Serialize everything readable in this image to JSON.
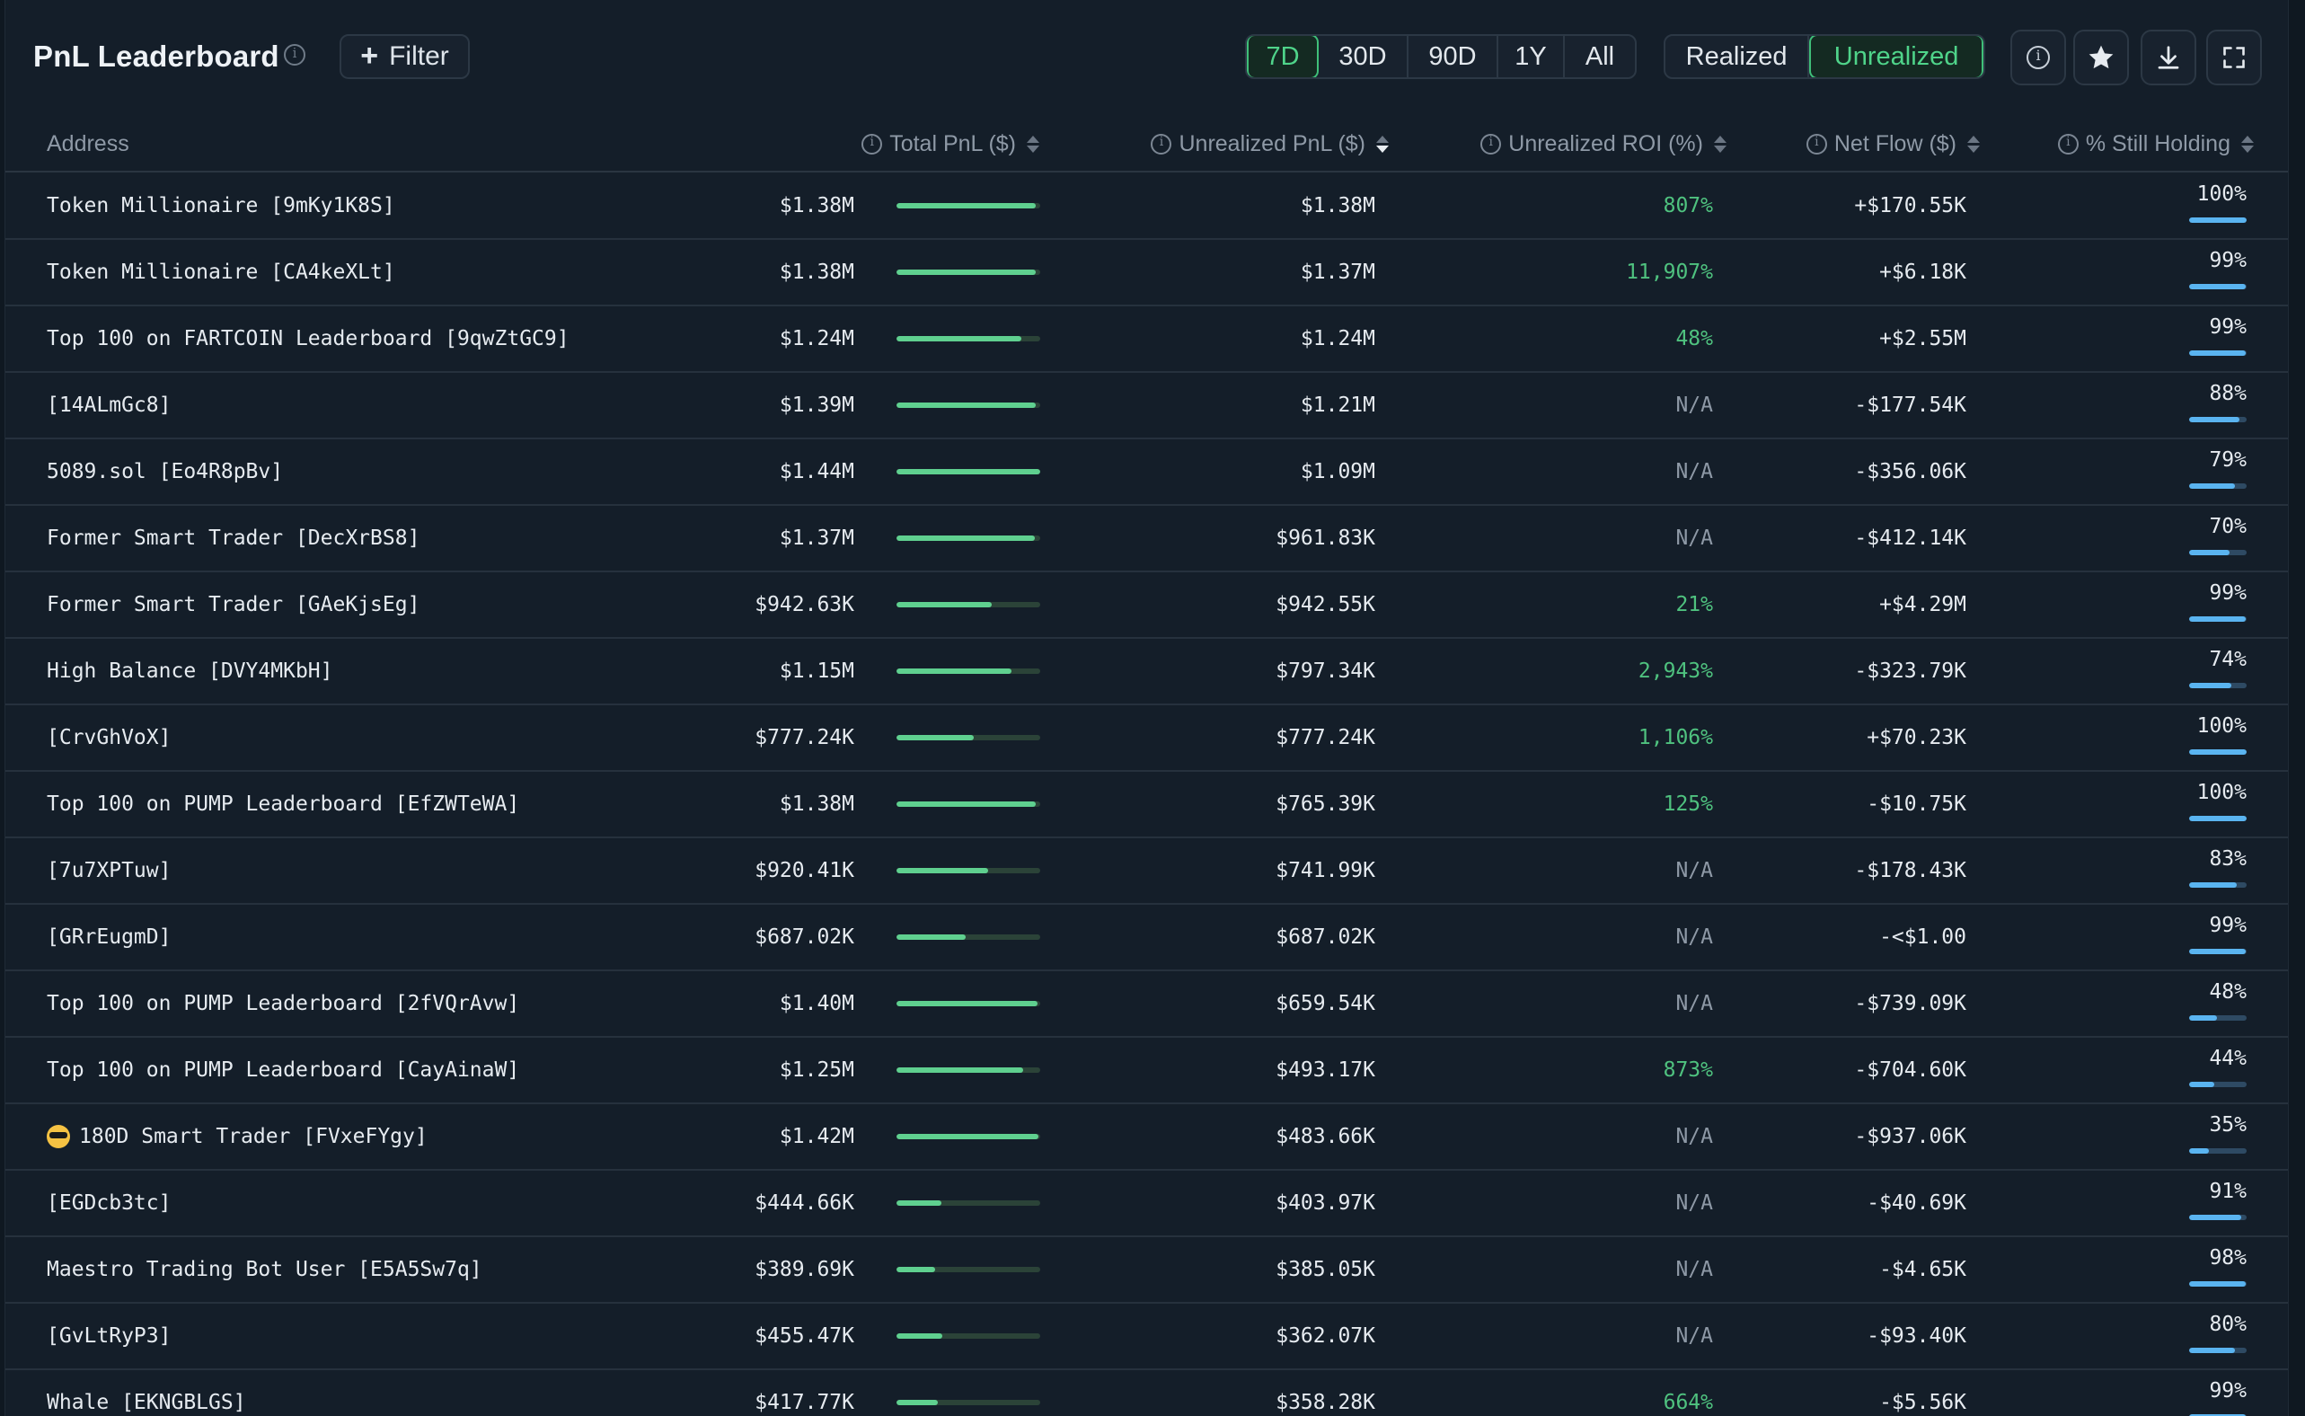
{
  "header": {
    "title": "PnL Leaderboard",
    "filter_label": "Filter",
    "periods": [
      "7D",
      "30D",
      "90D",
      "1Y",
      "All"
    ],
    "period_active": "7D",
    "modes": [
      "Realized",
      "Unrealized"
    ],
    "mode_active": "Unrealized",
    "icons": [
      "info-icon",
      "star-icon",
      "download-icon",
      "fullscreen-icon"
    ]
  },
  "columns": {
    "address": "Address",
    "total_pnl": "Total PnL ($)",
    "unrealized_pnl": "Unrealized PnL ($)",
    "unrealized_roi": "Unrealized ROI (%)",
    "net_flow": "Net Flow ($)",
    "still_holding": "% Still Holding"
  },
  "sort": {
    "column": "unrealized_pnl",
    "direction": "desc"
  },
  "colors": {
    "accent": "#4fd48a",
    "positive": "#4fc27f",
    "holding_bar": "#5ab4f0"
  },
  "rows": [
    {
      "address": "Token Millionaire [9mKy1K8S]",
      "total_pnl": "$1.38M",
      "bar": 0.97,
      "unrealized_pnl": "$1.38M",
      "roi": "807%",
      "net_flow": "+$170.55K",
      "holding": "100%",
      "holding_frac": 1.0
    },
    {
      "address": "Token Millionaire [CA4keXLt]",
      "total_pnl": "$1.38M",
      "bar": 0.97,
      "unrealized_pnl": "$1.37M",
      "roi": "11,907%",
      "net_flow": "+$6.18K",
      "holding": "99%",
      "holding_frac": 0.99
    },
    {
      "address": "Top 100 on FARTCOIN Leaderboard [9qwZtGC9]",
      "total_pnl": "$1.24M",
      "bar": 0.87,
      "unrealized_pnl": "$1.24M",
      "roi": "48%",
      "net_flow": "+$2.55M",
      "holding": "99%",
      "holding_frac": 0.99
    },
    {
      "address": "[14ALmGc8]",
      "total_pnl": "$1.39M",
      "bar": 0.97,
      "unrealized_pnl": "$1.21M",
      "roi": "N/A",
      "net_flow": "-$177.54K",
      "holding": "88%",
      "holding_frac": 0.88
    },
    {
      "address": "5089.sol [Eo4R8pBv]",
      "total_pnl": "$1.44M",
      "bar": 1.0,
      "unrealized_pnl": "$1.09M",
      "roi": "N/A",
      "net_flow": "-$356.06K",
      "holding": "79%",
      "holding_frac": 0.79
    },
    {
      "address": "Former Smart Trader [DecXrBS8]",
      "total_pnl": "$1.37M",
      "bar": 0.96,
      "unrealized_pnl": "$961.83K",
      "roi": "N/A",
      "net_flow": "-$412.14K",
      "holding": "70%",
      "holding_frac": 0.7
    },
    {
      "address": "Former Smart Trader [GAeKjsEg]",
      "total_pnl": "$942.63K",
      "bar": 0.66,
      "unrealized_pnl": "$942.55K",
      "roi": "21%",
      "net_flow": "+$4.29M",
      "holding": "99%",
      "holding_frac": 0.99
    },
    {
      "address": "High Balance [DVY4MKbH]",
      "total_pnl": "$1.15M",
      "bar": 0.8,
      "unrealized_pnl": "$797.34K",
      "roi": "2,943%",
      "net_flow": "-$323.79K",
      "holding": "74%",
      "holding_frac": 0.74
    },
    {
      "address": "[CrvGhVoX]",
      "total_pnl": "$777.24K",
      "bar": 0.54,
      "unrealized_pnl": "$777.24K",
      "roi": "1,106%",
      "net_flow": "+$70.23K",
      "holding": "100%",
      "holding_frac": 1.0
    },
    {
      "address": "Top 100 on PUMP Leaderboard [EfZWTeWA]",
      "total_pnl": "$1.38M",
      "bar": 0.97,
      "unrealized_pnl": "$765.39K",
      "roi": "125%",
      "net_flow": "-$10.75K",
      "holding": "100%",
      "holding_frac": 1.0
    },
    {
      "address": "[7u7XPTuw]",
      "total_pnl": "$920.41K",
      "bar": 0.64,
      "unrealized_pnl": "$741.99K",
      "roi": "N/A",
      "net_flow": "-$178.43K",
      "holding": "83%",
      "holding_frac": 0.83
    },
    {
      "address": "[GRrEugmD]",
      "total_pnl": "$687.02K",
      "bar": 0.48,
      "unrealized_pnl": "$687.02K",
      "roi": "N/A",
      "net_flow": "-<$1.00",
      "holding": "99%",
      "holding_frac": 0.99
    },
    {
      "address": "Top 100 on PUMP Leaderboard [2fVQrAvw]",
      "total_pnl": "$1.40M",
      "bar": 0.98,
      "unrealized_pnl": "$659.54K",
      "roi": "N/A",
      "net_flow": "-$739.09K",
      "holding": "48%",
      "holding_frac": 0.48
    },
    {
      "address": "Top 100 on PUMP Leaderboard [CayAinaW]",
      "total_pnl": "$1.25M",
      "bar": 0.88,
      "unrealized_pnl": "$493.17K",
      "roi": "873%",
      "net_flow": "-$704.60K",
      "holding": "44%",
      "holding_frac": 0.44
    },
    {
      "address": "180D Smart Trader [FVxeFYgy]",
      "total_pnl": "$1.42M",
      "bar": 0.99,
      "unrealized_pnl": "$483.66K",
      "roi": "N/A",
      "net_flow": "-$937.06K",
      "holding": "35%",
      "holding_frac": 0.35,
      "icon": "sunglasses-emoji-icon"
    },
    {
      "address": "[EGDcb3tc]",
      "total_pnl": "$444.66K",
      "bar": 0.31,
      "unrealized_pnl": "$403.97K",
      "roi": "N/A",
      "net_flow": "-$40.69K",
      "holding": "91%",
      "holding_frac": 0.91
    },
    {
      "address": "Maestro Trading Bot User [E5A5Sw7q]",
      "total_pnl": "$389.69K",
      "bar": 0.27,
      "unrealized_pnl": "$385.05K",
      "roi": "N/A",
      "net_flow": "-$4.65K",
      "holding": "98%",
      "holding_frac": 0.98
    },
    {
      "address": "[GvLtRyP3]",
      "total_pnl": "$455.47K",
      "bar": 0.32,
      "unrealized_pnl": "$362.07K",
      "roi": "N/A",
      "net_flow": "-$93.40K",
      "holding": "80%",
      "holding_frac": 0.8
    },
    {
      "address": "Whale [EKNGBLGS]",
      "total_pnl": "$417.77K",
      "bar": 0.29,
      "unrealized_pnl": "$358.28K",
      "roi": "664%",
      "net_flow": "-$5.56K",
      "holding": "99%",
      "holding_frac": 0.99
    }
  ]
}
